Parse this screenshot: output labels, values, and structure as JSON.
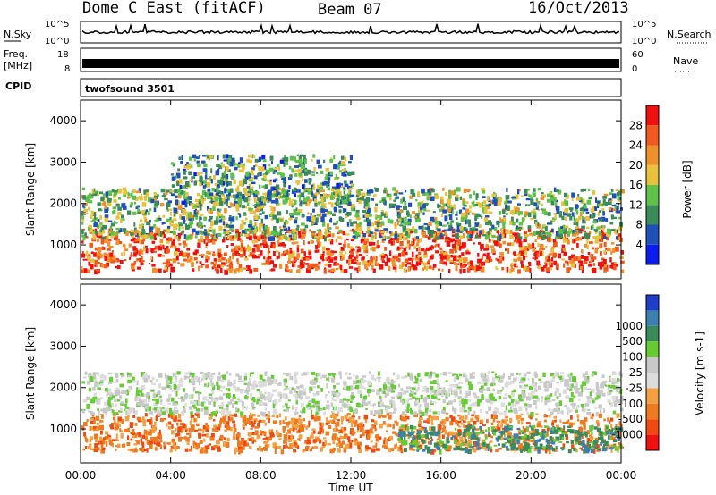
{
  "header": {
    "title": "Dome C East (fitACF)",
    "beam": "Beam 07",
    "date": "16/Oct/2013"
  },
  "top_panels": {
    "nsky_label": "N.Sky",
    "nsky_ticks": [
      "10^5",
      "10^0"
    ],
    "nsearch_label": "N.Search",
    "nsearch_ticks": [
      "10^5",
      "10^0"
    ],
    "freq_label": "Freq.",
    "freq_unit": "[MHz]",
    "freq_ticks": [
      "18",
      "8"
    ],
    "nave_label": "Nave",
    "nave_ticks": [
      "60",
      "0"
    ],
    "cpid_label": "CPID",
    "cpid_text": "twofsound 3501"
  },
  "colors": {
    "power_scale": [
      "#0b1cf0",
      "#1f4fb8",
      "#3a8a5a",
      "#5ec24a",
      "#e8c23a",
      "#f0902a",
      "#f05a1e",
      "#f01010"
    ],
    "velocity_scale": [
      "#1f3ec9",
      "#3d7fb0",
      "#3a8a5a",
      "#66cc33",
      "#c8c8c8",
      "#dcdcdc",
      "#f4a040",
      "#f07a20",
      "#f04a10",
      "#f01010"
    ]
  },
  "chart_data": [
    {
      "type": "heatmap",
      "title": "",
      "xlabel": "",
      "ylabel": "Slant Range [km]",
      "xlim": [
        "00:00",
        "24:00"
      ],
      "ylim": [
        180,
        4500
      ],
      "x_tick_labels": [
        "00:00",
        "04:00",
        "08:00",
        "12:00",
        "16:00",
        "20:00",
        "00:00"
      ],
      "y_tick_labels": [
        "1000",
        "2000",
        "3000",
        "4000"
      ],
      "y_ticks": [
        1000,
        2000,
        3000,
        4000
      ],
      "colorbar": {
        "label": "Power [dB]",
        "tick_labels": [
          "4",
          "8",
          "12",
          "16",
          "20",
          "24",
          "28"
        ],
        "range": [
          0,
          30
        ]
      },
      "regions": [
        {
          "t_start": 0.0,
          "t_end": 24.0,
          "range_start": 400,
          "range_end": 1400,
          "value": 26
        },
        {
          "t_start": 0.0,
          "t_end": 24.0,
          "range_start": 1200,
          "range_end": 2400,
          "value": 12
        },
        {
          "t_start": 4.0,
          "t_end": 12.0,
          "range_start": 2000,
          "range_end": 3200,
          "value": 10
        }
      ]
    },
    {
      "type": "heatmap",
      "title": "",
      "xlabel": "Time UT",
      "ylabel": "Slant Range [km]",
      "xlim": [
        "00:00",
        "24:00"
      ],
      "ylim": [
        180,
        4500
      ],
      "x_tick_labels": [
        "00:00",
        "04:00",
        "08:00",
        "12:00",
        "16:00",
        "20:00",
        "00:00"
      ],
      "y_tick_labels": [
        "1000",
        "2000",
        "3000",
        "4000"
      ],
      "y_ticks": [
        1000,
        2000,
        3000,
        4000
      ],
      "colorbar": {
        "label": "Velocity [m s-1]",
        "tick_labels": [
          "1000",
          "500",
          "100",
          "25",
          "-25",
          "-100",
          "-500",
          "-1000"
        ]
      },
      "regions": [
        {
          "t_start": 0.0,
          "t_end": 24.0,
          "range_start": 500,
          "range_end": 1400,
          "value": -100
        },
        {
          "t_start": 0.0,
          "t_end": 24.0,
          "range_start": 1400,
          "range_end": 2400,
          "value": 0
        },
        {
          "t_start": 14.0,
          "t_end": 24.0,
          "range_start": 500,
          "range_end": 1100,
          "value": 300
        }
      ]
    }
  ]
}
